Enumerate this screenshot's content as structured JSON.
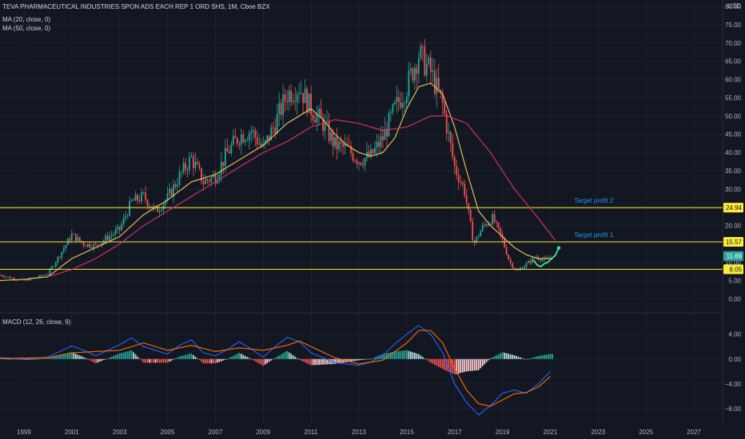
{
  "header": {
    "title": "TEVA PHARMACEUTICAL INDUSTRIES SPON ADS EACH REP 1 ORD SHS, 1M, Cboe BZX",
    "ma20": "MA (20, close, 0)",
    "ma50": "MA (50, close, 0)",
    "macd": "MACD (12, 26, close, 9)",
    "currency": "USD"
  },
  "colors": {
    "background": "#131722",
    "up": "#26a69a",
    "down": "#ef5350",
    "ma20": "#f5c85a",
    "ma50": "#e0306a",
    "hline": "#ffeb3b",
    "macd": "#2962ff",
    "signal": "#ff6d00",
    "annotation": "#2196f3",
    "projection": "#3ee6a0"
  },
  "chart_data": [
    {
      "type": "candlestick",
      "title": "TEVA PHARMACEUTICAL INDUSTRIES SPON ADS EACH REP 1 ORD SHS, 1M, Cboe BZX",
      "x_range": [
        1998.0,
        2028.2
      ],
      "x_ticks": [
        "1999",
        "2001",
        "2003",
        "2005",
        "2007",
        "2009",
        "2011",
        "2013",
        "2015",
        "2017",
        "2019",
        "2021",
        "2023",
        "2025",
        "2027"
      ],
      "y_unit": "USD",
      "y_range": [
        -3,
        80
      ],
      "y_ticks": [
        "80.00",
        "75.00",
        "70.00",
        "65.00",
        "60.00",
        "55.00",
        "50.00",
        "45.00",
        "40.00",
        "35.00",
        "30.00",
        "25.00",
        "20.00",
        "15.00",
        "10.00",
        "5.00",
        "0.00"
      ],
      "grid": true,
      "close_path": [
        [
          1998.0,
          6.5
        ],
        [
          1998.5,
          5.6
        ],
        [
          1999.0,
          5.0
        ],
        [
          1999.5,
          5.8
        ],
        [
          2000.0,
          6.8
        ],
        [
          2000.5,
          12.0
        ],
        [
          2001.0,
          17.5
        ],
        [
          2001.5,
          15.0
        ],
        [
          2002.0,
          14.5
        ],
        [
          2002.5,
          16.8
        ],
        [
          2003.0,
          19.0
        ],
        [
          2003.5,
          26.5
        ],
        [
          2004.0,
          28.0
        ],
        [
          2004.5,
          24.0
        ],
        [
          2005.0,
          27.5
        ],
        [
          2005.5,
          33.5
        ],
        [
          2006.0,
          38.5
        ],
        [
          2006.5,
          32.0
        ],
        [
          2007.0,
          33.5
        ],
        [
          2007.5,
          40.0
        ],
        [
          2008.0,
          44.5
        ],
        [
          2008.5,
          46.0
        ],
        [
          2009.0,
          41.0
        ],
        [
          2009.5,
          48.0
        ],
        [
          2010.0,
          56.0
        ],
        [
          2010.5,
          58.0
        ],
        [
          2011.0,
          52.0
        ],
        [
          2011.5,
          48.0
        ],
        [
          2012.0,
          42.0
        ],
        [
          2012.5,
          41.0
        ],
        [
          2013.0,
          38.0
        ],
        [
          2013.5,
          39.0
        ],
        [
          2014.0,
          44.0
        ],
        [
          2014.5,
          52.0
        ],
        [
          2015.0,
          58.0
        ],
        [
          2015.5,
          67.0
        ],
        [
          2016.0,
          62.0
        ],
        [
          2016.5,
          53.0
        ],
        [
          2017.0,
          36.0
        ],
        [
          2017.4,
          30.0
        ],
        [
          2017.8,
          15.0
        ],
        [
          2018.2,
          20.0
        ],
        [
          2018.6,
          22.0
        ],
        [
          2019.0,
          16.0
        ],
        [
          2019.3,
          10.0
        ],
        [
          2019.6,
          7.5
        ],
        [
          2020.0,
          9.5
        ],
        [
          2020.4,
          11.5
        ],
        [
          2020.8,
          10.5
        ],
        [
          2021.1,
          11.7
        ]
      ],
      "last_close": "11.69",
      "ma20_path": [
        [
          1998.0,
          5.0
        ],
        [
          1999.0,
          5.3
        ],
        [
          2000.0,
          6.0
        ],
        [
          2001.0,
          11.0
        ],
        [
          2002.0,
          14.0
        ],
        [
          2003.0,
          17.0
        ],
        [
          2004.0,
          23.0
        ],
        [
          2005.0,
          27.0
        ],
        [
          2006.0,
          32.0
        ],
        [
          2007.0,
          34.0
        ],
        [
          2008.0,
          38.0
        ],
        [
          2009.0,
          42.0
        ],
        [
          2010.0,
          48.0
        ],
        [
          2011.0,
          52.0
        ],
        [
          2011.5,
          49.0
        ],
        [
          2012.0,
          45.0
        ],
        [
          2012.5,
          42.0
        ],
        [
          2013.0,
          40.0
        ],
        [
          2013.5,
          39.0
        ],
        [
          2014.0,
          40.0
        ],
        [
          2014.5,
          44.0
        ],
        [
          2015.0,
          52.0
        ],
        [
          2015.5,
          58.0
        ],
        [
          2016.0,
          59.0
        ],
        [
          2016.5,
          56.0
        ],
        [
          2017.0,
          47.0
        ],
        [
          2017.5,
          35.0
        ],
        [
          2018.0,
          24.0
        ],
        [
          2018.5,
          20.0
        ],
        [
          2019.0,
          17.0
        ],
        [
          2019.5,
          14.0
        ],
        [
          2020.0,
          12.0
        ],
        [
          2020.5,
          11.0
        ],
        [
          2021.0,
          11.0
        ]
      ],
      "ma50_path": [
        [
          2000.0,
          6.0
        ],
        [
          2001.0,
          8.0
        ],
        [
          2002.0,
          11.0
        ],
        [
          2003.0,
          15.0
        ],
        [
          2004.0,
          20.0
        ],
        [
          2005.0,
          24.0
        ],
        [
          2006.0,
          28.0
        ],
        [
          2007.0,
          32.0
        ],
        [
          2008.0,
          36.0
        ],
        [
          2009.0,
          40.0
        ],
        [
          2010.0,
          43.0
        ],
        [
          2011.0,
          47.0
        ],
        [
          2012.0,
          49.0
        ],
        [
          2013.0,
          48.0
        ],
        [
          2014.0,
          46.0
        ],
        [
          2015.0,
          47.0
        ],
        [
          2016.0,
          50.0
        ],
        [
          2016.7,
          50.0
        ],
        [
          2017.5,
          48.0
        ],
        [
          2018.5,
          40.0
        ],
        [
          2019.5,
          30.0
        ],
        [
          2020.5,
          22.0
        ],
        [
          2021.2,
          16.0
        ]
      ],
      "horizontal_levels": [
        {
          "label": "Target profit 2",
          "value": 24.94,
          "tag": "24.94"
        },
        {
          "label": "Target profit 1",
          "value": 15.57,
          "tag": "15.57"
        },
        {
          "label": "",
          "value": 8.05,
          "tag": "8.05"
        }
      ],
      "projection_path": [
        [
          2020.3,
          10.6
        ],
        [
          2020.45,
          9.2
        ],
        [
          2020.6,
          8.8
        ],
        [
          2020.75,
          9.6
        ],
        [
          2020.9,
          10.0
        ],
        [
          2021.05,
          11.0
        ],
        [
          2021.2,
          11.8
        ],
        [
          2021.35,
          13.9
        ]
      ]
    },
    {
      "type": "macd",
      "title": "MACD (12, 26, close, 9)",
      "y_range": [
        -9.8,
        6.4
      ],
      "y_ticks": [
        "4.00",
        "0.00",
        "−4.00",
        "−8.00"
      ],
      "macd_path": [
        [
          1998.0,
          0.2
        ],
        [
          1999.0,
          0.0
        ],
        [
          2000.0,
          0.3
        ],
        [
          2001.0,
          2.1
        ],
        [
          2001.5,
          1.4
        ],
        [
          2002.0,
          0.5
        ],
        [
          2003.0,
          2.3
        ],
        [
          2003.5,
          3.4
        ],
        [
          2004.0,
          2.0
        ],
        [
          2005.0,
          0.8
        ],
        [
          2005.5,
          2.2
        ],
        [
          2006.0,
          3.1
        ],
        [
          2006.5,
          1.0
        ],
        [
          2007.0,
          0.5
        ],
        [
          2007.5,
          1.5
        ],
        [
          2008.0,
          2.8
        ],
        [
          2008.5,
          1.6
        ],
        [
          2009.0,
          0.3
        ],
        [
          2009.5,
          2.0
        ],
        [
          2010.0,
          3.5
        ],
        [
          2010.5,
          2.8
        ],
        [
          2011.0,
          1.0
        ],
        [
          2011.5,
          0.2
        ],
        [
          2012.0,
          -0.6
        ],
        [
          2013.0,
          -1.0
        ],
        [
          2013.5,
          -0.5
        ],
        [
          2014.0,
          0.6
        ],
        [
          2014.5,
          2.4
        ],
        [
          2015.0,
          4.0
        ],
        [
          2015.5,
          5.4
        ],
        [
          2016.0,
          4.0
        ],
        [
          2016.5,
          1.0
        ],
        [
          2017.0,
          -4.0
        ],
        [
          2017.5,
          -7.0
        ],
        [
          2018.0,
          -9.0
        ],
        [
          2018.5,
          -7.5
        ],
        [
          2019.0,
          -5.5
        ],
        [
          2019.5,
          -5.0
        ],
        [
          2020.0,
          -5.5
        ],
        [
          2020.5,
          -4.0
        ],
        [
          2021.0,
          -2.0
        ]
      ],
      "signal_path": [
        [
          1998.0,
          0.1
        ],
        [
          2000.0,
          0.2
        ],
        [
          2001.0,
          1.0
        ],
        [
          2002.0,
          1.2
        ],
        [
          2003.0,
          1.4
        ],
        [
          2004.0,
          2.6
        ],
        [
          2005.0,
          1.4
        ],
        [
          2006.0,
          2.2
        ],
        [
          2007.0,
          1.2
        ],
        [
          2008.0,
          1.8
        ],
        [
          2009.0,
          1.4
        ],
        [
          2010.0,
          2.2
        ],
        [
          2010.5,
          2.9
        ],
        [
          2011.0,
          2.0
        ],
        [
          2012.0,
          0.2
        ],
        [
          2013.0,
          -0.8
        ],
        [
          2014.0,
          -0.2
        ],
        [
          2015.0,
          2.6
        ],
        [
          2015.5,
          4.6
        ],
        [
          2016.0,
          4.6
        ],
        [
          2016.5,
          2.6
        ],
        [
          2017.0,
          -1.5
        ],
        [
          2017.5,
          -5.0
        ],
        [
          2018.0,
          -7.2
        ],
        [
          2018.5,
          -7.6
        ],
        [
          2019.0,
          -6.6
        ],
        [
          2019.5,
          -5.6
        ],
        [
          2020.0,
          -5.4
        ],
        [
          2020.5,
          -4.5
        ],
        [
          2021.0,
          -2.8
        ]
      ]
    }
  ]
}
